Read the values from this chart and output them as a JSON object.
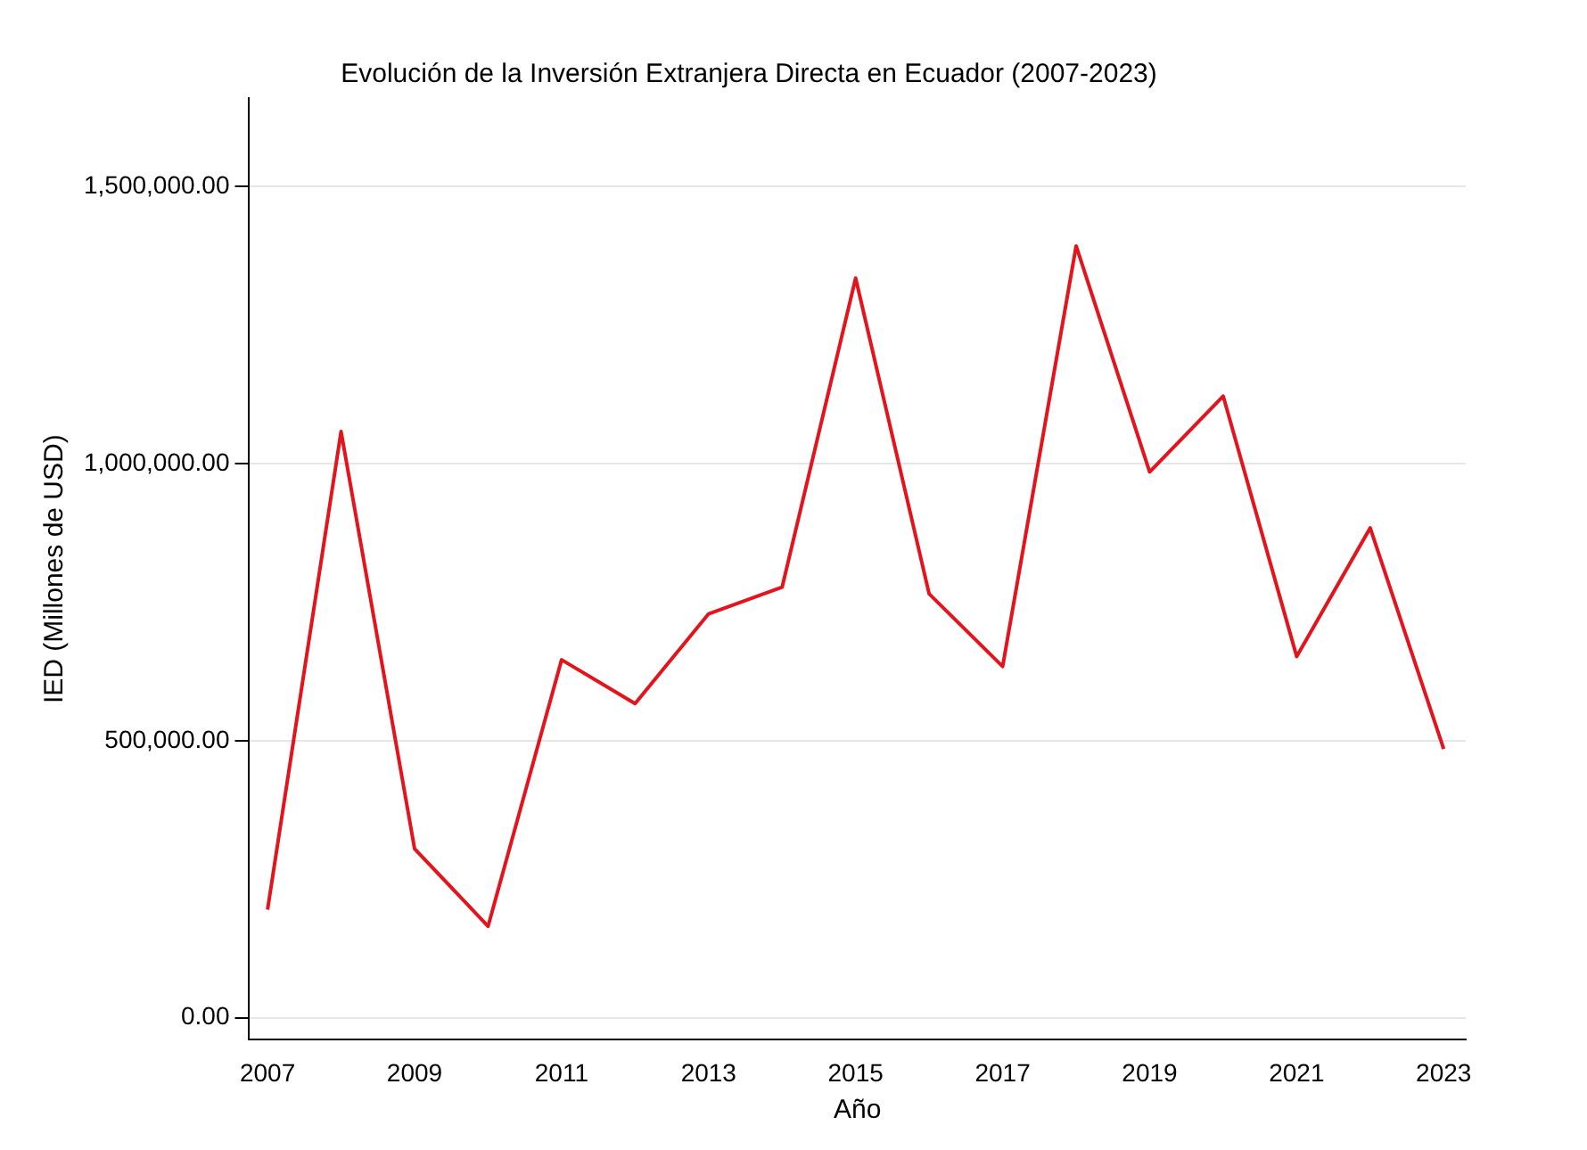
{
  "chart_data": {
    "type": "line",
    "title": "Evolución de la Inversión Extranjera Directa en Ecuador (2007-2023)",
    "xlabel": "Año",
    "ylabel": "IED (Millones de USD)",
    "x": [
      2007,
      2008,
      2009,
      2010,
      2011,
      2012,
      2013,
      2014,
      2015,
      2016,
      2017,
      2018,
      2019,
      2020,
      2021,
      2022,
      2023
    ],
    "values": [
      195000,
      1058000,
      305000,
      165000,
      646000,
      567000,
      729000,
      777000,
      1335000,
      765000,
      634000,
      1393000,
      985000,
      1122000,
      652000,
      884000,
      485000
    ],
    "color": "#e3141c",
    "xlim": [
      2006.75,
      2023.3
    ],
    "xticks": [
      2007,
      2009,
      2011,
      2013,
      2015,
      2017,
      2019,
      2021,
      2023
    ],
    "ylim": [
      -40000,
      1660000
    ],
    "yticks": [
      {
        "value": 0,
        "label": "0.00"
      },
      {
        "value": 500000,
        "label": "500,000.00"
      },
      {
        "value": 1000000,
        "label": "1,000,000.00"
      },
      {
        "value": 1500000,
        "label": "1,500,000.00"
      }
    ],
    "grid": "y"
  }
}
